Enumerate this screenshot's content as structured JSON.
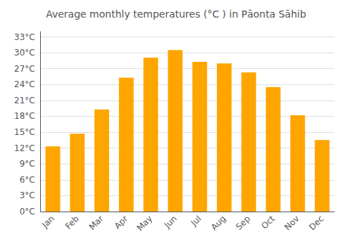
{
  "chart_data": {
    "type": "bar",
    "title": "Average monthly temperatures (°C ) in Pāonta Sāhib",
    "categories": [
      "Jan",
      "Feb",
      "Mar",
      "Apr",
      "May",
      "Jun",
      "Jul",
      "Aug",
      "Sep",
      "Oct",
      "Nov",
      "Dec"
    ],
    "values": [
      12.3,
      14.7,
      19.3,
      25.3,
      29.1,
      30.5,
      28.3,
      28.0,
      26.3,
      23.5,
      18.2,
      13.5
    ],
    "color": "#FFA500",
    "ylim": [
      0,
      34
    ],
    "yticks": [
      {
        "value": 0,
        "label": "0°C"
      },
      {
        "value": 3,
        "label": "3°C"
      },
      {
        "value": 6,
        "label": "6°C"
      },
      {
        "value": 9,
        "label": "9°C"
      },
      {
        "value": 12,
        "label": "12°C"
      },
      {
        "value": 15,
        "label": "15°C"
      },
      {
        "value": 18,
        "label": "18°C"
      },
      {
        "value": 21,
        "label": "21°C"
      },
      {
        "value": 24,
        "label": "24°C"
      },
      {
        "value": 27,
        "label": "27°C"
      },
      {
        "value": 30,
        "label": "30°C"
      },
      {
        "value": 33,
        "label": "33°C"
      }
    ],
    "grid": true
  }
}
